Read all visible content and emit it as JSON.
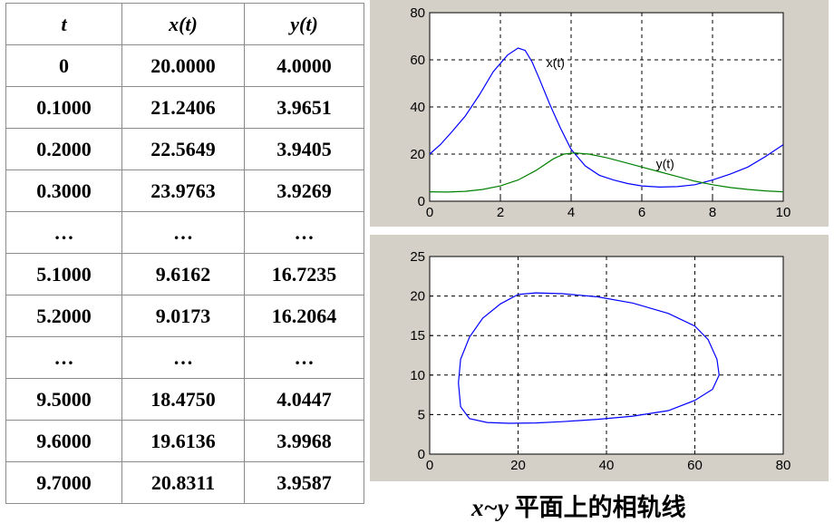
{
  "table": {
    "headers": [
      "t",
      "x(t)",
      "y(t)"
    ],
    "rows": [
      [
        "0",
        "20.0000",
        "4.0000"
      ],
      [
        "0.1000",
        "21.2406",
        "3.9651"
      ],
      [
        "0.2000",
        "22.5649",
        "3.9405"
      ],
      [
        "0.3000",
        "23.9763",
        "3.9269"
      ],
      [
        "…",
        "…",
        "…"
      ],
      [
        "5.1000",
        "9.6162",
        "16.7235"
      ],
      [
        "5.2000",
        "9.0173",
        "16.2064"
      ],
      [
        "…",
        "…",
        "…"
      ],
      [
        "9.5000",
        "18.4750",
        "4.0447"
      ],
      [
        "9.6000",
        "19.6136",
        "3.9968"
      ],
      [
        "9.7000",
        "20.8311",
        "3.9587"
      ]
    ]
  },
  "caption": {
    "var": "x~y",
    "text": "平面上的相轨线"
  },
  "chart_data": [
    {
      "type": "line",
      "xlim": [
        0,
        10
      ],
      "ylim": [
        0,
        80
      ],
      "xticks": [
        "0",
        "2",
        "4",
        "6",
        "8",
        "10"
      ],
      "yticks": [
        "0",
        "20",
        "40",
        "60",
        "80"
      ],
      "grid": true,
      "series": [
        {
          "name": "x(t)",
          "color": "#0000ff",
          "x": [
            0,
            0.3,
            0.6,
            1,
            1.4,
            1.8,
            2.2,
            2.5,
            2.7,
            2.9,
            3.1,
            3.4,
            3.7,
            4,
            4.4,
            4.8,
            5.2,
            5.6,
            6,
            6.5,
            7,
            7.5,
            8,
            8.5,
            9,
            9.5,
            10
          ],
          "y": [
            20,
            24,
            29,
            36,
            45,
            55,
            62,
            65,
            64,
            59,
            52,
            41,
            31,
            22,
            15,
            11,
            9,
            7.5,
            6.5,
            6,
            6.2,
            7,
            9,
            11.5,
            14.5,
            19,
            24
          ]
        },
        {
          "name": "y(t)",
          "color": "#008000",
          "x": [
            0,
            0.5,
            1,
            1.5,
            2,
            2.5,
            3,
            3.5,
            3.8,
            4.1,
            4.5,
            5,
            5.5,
            6,
            6.5,
            7,
            7.5,
            8,
            8.5,
            9,
            9.5,
            10
          ],
          "y": [
            4,
            3.9,
            4.2,
            5,
            6.5,
            9,
            13,
            18,
            20,
            20.5,
            20,
            18.5,
            16.5,
            14.5,
            12.5,
            10.5,
            8.5,
            7,
            5.8,
            5,
            4.4,
            4
          ]
        }
      ],
      "annotations": [
        {
          "text": "x(t)",
          "x": 3.3,
          "y": 57
        },
        {
          "text": "y(t)",
          "x": 6.4,
          "y": 14
        }
      ]
    },
    {
      "type": "line",
      "xlim": [
        0,
        80
      ],
      "ylim": [
        0,
        25
      ],
      "xticks": [
        "0",
        "20",
        "40",
        "60",
        "80"
      ],
      "yticks": [
        "0",
        "5",
        "10",
        "15",
        "20",
        "25"
      ],
      "grid": true,
      "series": [
        {
          "color": "#0000ff",
          "x": [
            20,
            24,
            30,
            38,
            46,
            54,
            60,
            63,
            65,
            65.5,
            64,
            60,
            54,
            46,
            38,
            30,
            24,
            18,
            13,
            9,
            7,
            6.5,
            7,
            9,
            12,
            16,
            20
          ],
          "y": [
            20.2,
            20.4,
            20.3,
            19.9,
            19.1,
            17.8,
            16.2,
            14.5,
            12,
            10,
            8.2,
            6.8,
            5.5,
            4.8,
            4.4,
            4.1,
            3.95,
            3.9,
            4,
            4.5,
            6,
            9,
            12,
            14.8,
            17.2,
            19,
            20.2
          ]
        }
      ]
    }
  ]
}
